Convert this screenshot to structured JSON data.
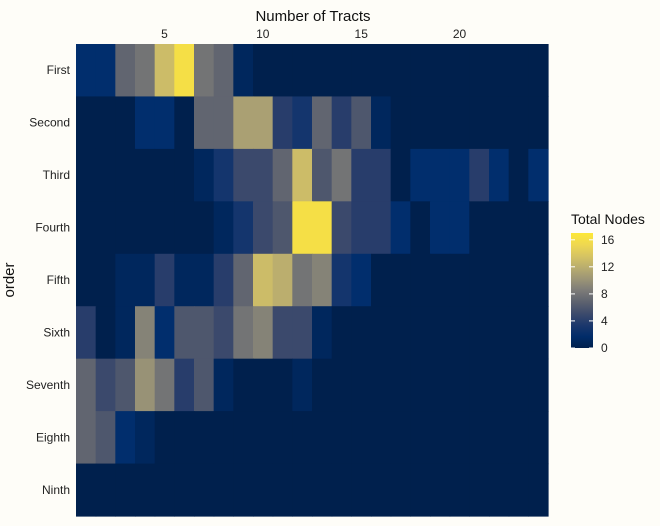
{
  "chart_data": {
    "type": "heatmap",
    "title": "",
    "xlabel": "Number of Tracts",
    "ylabel": "order",
    "x_axis_position": "top",
    "x_range": [
      0.5,
      24.5
    ],
    "x_ticks": [
      5,
      10,
      15,
      20
    ],
    "categories_y": [
      "First",
      "Second",
      "Third",
      "Fourth",
      "Fifth",
      "Sixth",
      "Seventh",
      "Eighth",
      "Ninth"
    ],
    "x": [
      1,
      2,
      3,
      4,
      5,
      6,
      7,
      8,
      9,
      10,
      11,
      12,
      13,
      14,
      15,
      16,
      17,
      18,
      19,
      20,
      21,
      22,
      23,
      24
    ],
    "z": [
      [
        2,
        2,
        7,
        8,
        13,
        16,
        8,
        7,
        1,
        0,
        0,
        0,
        0,
        0,
        0,
        0,
        0,
        0,
        0,
        0,
        0,
        0,
        0,
        0
      ],
      [
        0,
        0,
        0,
        2,
        2,
        0,
        7,
        7,
        11,
        11,
        4,
        3,
        7,
        4,
        6,
        1,
        0,
        0,
        0,
        0,
        0,
        0,
        0,
        0
      ],
      [
        0,
        0,
        0,
        0,
        0,
        0,
        1,
        3,
        5,
        5,
        7,
        13,
        6,
        8,
        4,
        4,
        0,
        2,
        2,
        2,
        4,
        2,
        0,
        2
      ],
      [
        0,
        0,
        0,
        0,
        0,
        0,
        0,
        1,
        3,
        5,
        6,
        16,
        16,
        5,
        4,
        4,
        2,
        0,
        2,
        2,
        0,
        0,
        0,
        0
      ],
      [
        0,
        0,
        1,
        1,
        4,
        1,
        1,
        4,
        7,
        13,
        12,
        8,
        9,
        3,
        2,
        0,
        0,
        0,
        0,
        0,
        0,
        0,
        0,
        0
      ],
      [
        4,
        0,
        1,
        9,
        2,
        6,
        6,
        5,
        8,
        9,
        5,
        5,
        1,
        0,
        0,
        0,
        0,
        0,
        0,
        0,
        0,
        0,
        0,
        0
      ],
      [
        7,
        5,
        6,
        10,
        8,
        4,
        6,
        1,
        0,
        0,
        0,
        1,
        0,
        0,
        0,
        0,
        0,
        0,
        0,
        0,
        0,
        0,
        0,
        0
      ],
      [
        7,
        6,
        2,
        1,
        0,
        0,
        0,
        0,
        0,
        0,
        0,
        0,
        0,
        0,
        0,
        0,
        0,
        0,
        0,
        0,
        0,
        0,
        0,
        0
      ],
      [
        0,
        0,
        0,
        0,
        0,
        0,
        0,
        0,
        0,
        0,
        0,
        0,
        0,
        0,
        0,
        0,
        0,
        0,
        0,
        0,
        0,
        0,
        0,
        0
      ]
    ],
    "colorscale": "cividis",
    "legend": {
      "title": "Total Nodes",
      "position": "right",
      "ticks": [
        0,
        4,
        8,
        12,
        16
      ],
      "range": [
        0,
        17
      ]
    },
    "grid": false
  }
}
